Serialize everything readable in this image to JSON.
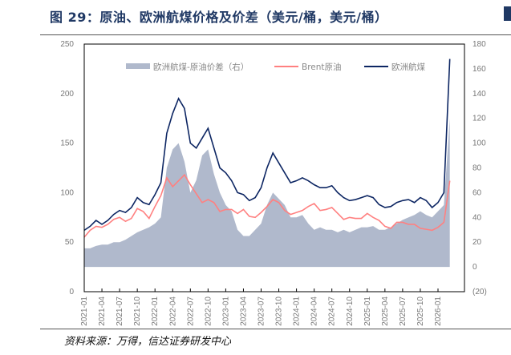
{
  "title": "图 29：原油、欧洲航煤价格及价差（美元/桶，美元/桶）",
  "source": "资料来源：万得，信达证券研发中心",
  "chart_data": {
    "type": "line",
    "title": "",
    "xlabel": "",
    "ylabel": "",
    "ylim_left": [
      0,
      250
    ],
    "ylim_right": [
      -20,
      180
    ],
    "yticks_left": [
      0,
      50,
      100,
      150,
      200,
      250
    ],
    "yticks_right": [
      "(20)",
      "0",
      "20",
      "40",
      "60",
      "80",
      "100",
      "120",
      "140",
      "160",
      "180"
    ],
    "xticks": [
      "2021-01",
      "2021-04",
      "2021-07",
      "2021-10",
      "2022-01",
      "2022-04",
      "2022-07",
      "2022-10",
      "2023-01",
      "2023-04",
      "2023-07",
      "2023-10",
      "2024-01",
      "2024-04",
      "2024-07",
      "2024-10",
      "2025-01",
      "2025-04",
      "2025-07",
      "2025-10",
      "2026-01"
    ],
    "x_start": "2021-01",
    "x_step": "month",
    "legend_position": "top",
    "grid": false,
    "series": [
      {
        "name": "欧洲航煤-原油价差（右）",
        "type": "area",
        "axis": "right",
        "color": "#b0b9cc",
        "values": [
          15,
          15,
          17,
          18,
          18,
          20,
          20,
          22,
          25,
          28,
          30,
          32,
          35,
          40,
          80,
          95,
          100,
          85,
          60,
          70,
          90,
          95,
          75,
          60,
          50,
          45,
          30,
          25,
          25,
          30,
          35,
          50,
          60,
          55,
          50,
          40,
          40,
          42,
          35,
          30,
          32,
          30,
          30,
          28,
          30,
          28,
          30,
          32,
          32,
          33,
          30,
          30,
          32,
          35,
          38,
          40,
          42,
          45,
          42,
          40,
          45,
          50,
          120
        ]
      },
      {
        "name": "Brent原油",
        "type": "line",
        "axis": "left",
        "color": "#ff8080",
        "values": [
          55,
          62,
          66,
          65,
          68,
          73,
          75,
          71,
          74,
          84,
          81,
          74,
          86,
          97,
          115,
          106,
          112,
          118,
          108,
          99,
          90,
          93,
          90,
          81,
          83,
          83,
          79,
          83,
          76,
          75,
          80,
          86,
          93,
          90,
          82,
          78,
          80,
          82,
          86,
          89,
          82,
          83,
          85,
          79,
          73,
          75,
          74,
          74,
          79,
          75,
          72,
          66,
          64,
          70,
          70,
          68,
          68,
          64,
          63,
          62,
          65,
          70,
          112
        ]
      },
      {
        "name": "欧洲航煤",
        "type": "line",
        "axis": "left",
        "color": "#0d2663",
        "values": [
          62,
          66,
          72,
          68,
          72,
          78,
          82,
          80,
          85,
          95,
          90,
          88,
          98,
          110,
          160,
          180,
          195,
          185,
          150,
          145,
          155,
          165,
          145,
          125,
          120,
          112,
          100,
          98,
          92,
          95,
          105,
          125,
          140,
          130,
          120,
          110,
          112,
          115,
          112,
          108,
          105,
          105,
          107,
          100,
          95,
          92,
          93,
          95,
          97,
          95,
          88,
          85,
          86,
          90,
          92,
          93,
          90,
          95,
          92,
          85,
          90,
          100,
          235
        ]
      }
    ],
    "negative_tick_color": "#ff0000"
  }
}
